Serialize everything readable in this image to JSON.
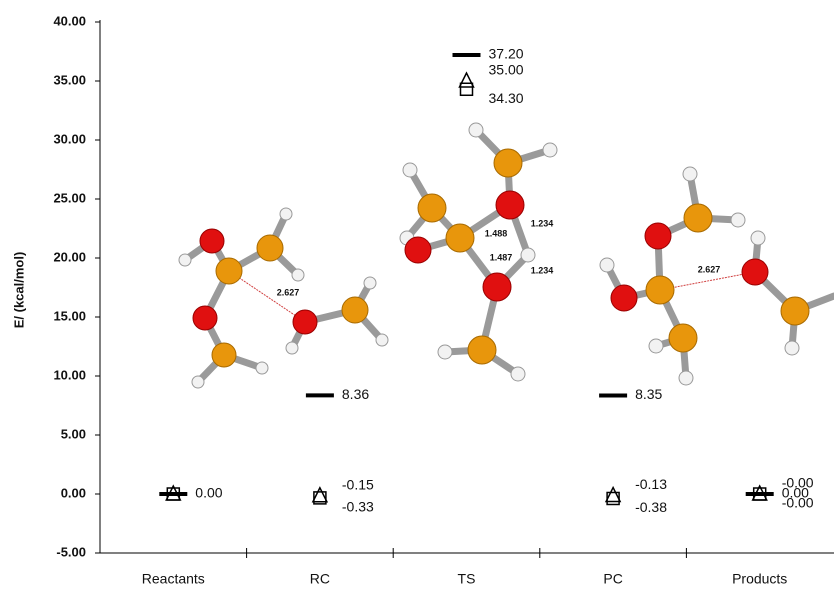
{
  "chart_data": {
    "type": "energy-profile",
    "y_label": "E/ (kcal/mol)",
    "categories": [
      "Reactants",
      "RC",
      "TS",
      "PC",
      "Products"
    ],
    "ylim": [
      -5,
      40
    ],
    "yticks": [
      {
        "value": -5,
        "label": "-5.00"
      },
      {
        "value": 0,
        "label": "0.00"
      },
      {
        "value": 5,
        "label": "5.00"
      },
      {
        "value": 10,
        "label": "10.00"
      },
      {
        "value": 15,
        "label": "15.00"
      },
      {
        "value": 20,
        "label": "20.00"
      },
      {
        "value": 25,
        "label": "25.00"
      },
      {
        "value": 30,
        "label": "30.00"
      },
      {
        "value": 35,
        "label": "35.00"
      },
      {
        "value": 40,
        "label": "40.00"
      }
    ],
    "series": [
      {
        "marker": "bar",
        "color": "#000000",
        "values": [
          0,
          8.36,
          37.2,
          8.35,
          0
        ],
        "value_labels": [
          "0.00",
          "8.36",
          "37.20",
          "8.35",
          "0.00"
        ]
      },
      {
        "marker": "triangle",
        "color": "#000000",
        "values": [
          0,
          -0.15,
          35.0,
          -0.13,
          0
        ],
        "value_labels": [
          null,
          "-0.15",
          "35.00",
          "-0.13",
          "-0.00"
        ]
      },
      {
        "marker": "square",
        "color": "#000000",
        "values": [
          0,
          -0.33,
          34.3,
          -0.38,
          0
        ],
        "value_labels": [
          null,
          "-0.33",
          "34.30",
          "-0.38",
          "-0.00"
        ]
      }
    ],
    "annotations": [
      "2.627",
      "1.488",
      "1.487",
      "1.234",
      "1.234",
      "2.627"
    ]
  }
}
